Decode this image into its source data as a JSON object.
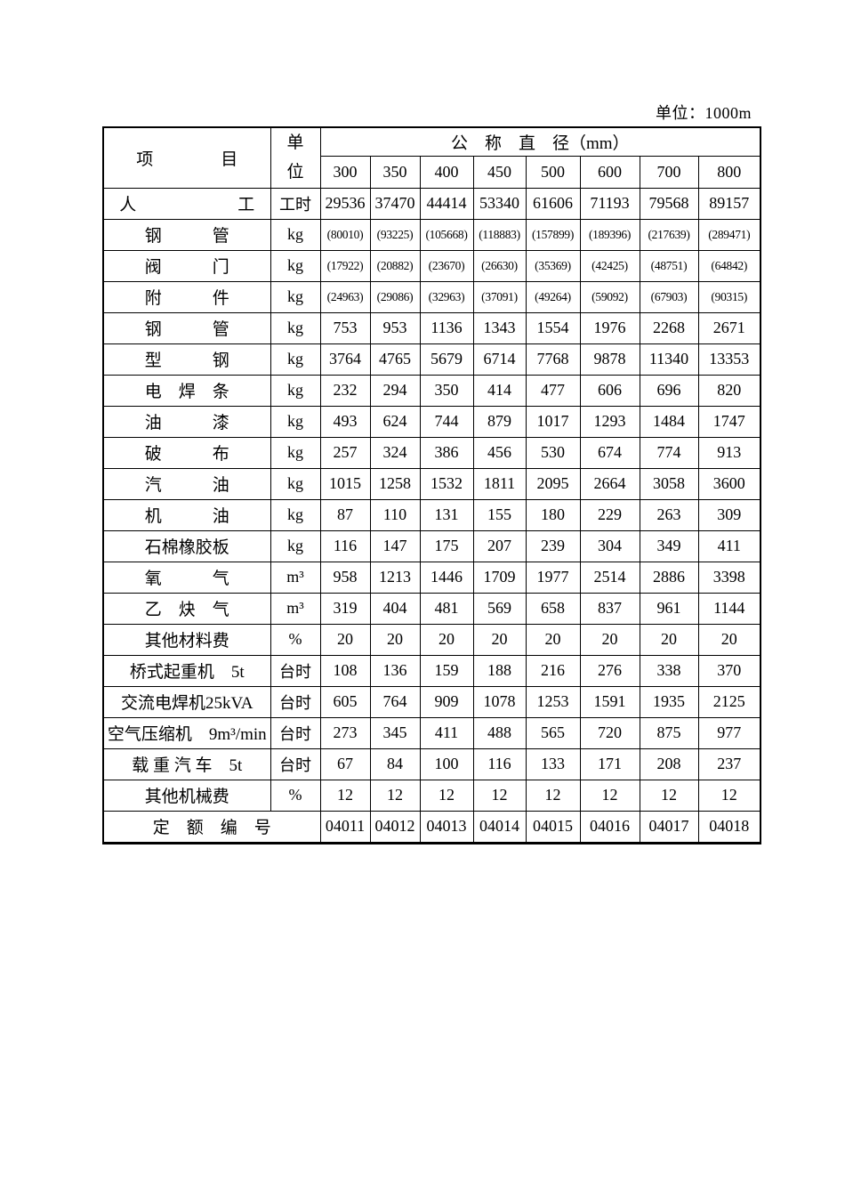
{
  "page": {
    "unit_note": "单位：1000m"
  },
  "table": {
    "header": {
      "item": "项　　　　目",
      "unit_top": "单",
      "unit_bottom": "位",
      "diameter_title": "公　称　直　径（mm）",
      "diameters": [
        "300",
        "350",
        "400",
        "450",
        "500",
        "600",
        "700",
        "800"
      ]
    },
    "rows": [
      {
        "label": "人　　　　　　工",
        "unit": "工时",
        "small": false,
        "values": [
          "29536",
          "37470",
          "44414",
          "53340",
          "61606",
          "71193",
          "79568",
          "89157"
        ]
      },
      {
        "label": "钢　　　管",
        "unit": "kg",
        "small": true,
        "values": [
          "(80010)",
          "(93225)",
          "(105668)",
          "(118883)",
          "(157899)",
          "(189396)",
          "(217639)",
          "(289471)"
        ]
      },
      {
        "label": "阀　　　门",
        "unit": "kg",
        "small": true,
        "values": [
          "(17922)",
          "(20882)",
          "(23670)",
          "(26630)",
          "(35369)",
          "(42425)",
          "(48751)",
          "(64842)"
        ]
      },
      {
        "label": "附　　　件",
        "unit": "kg",
        "small": true,
        "values": [
          "(24963)",
          "(29086)",
          "(32963)",
          "(37091)",
          "(49264)",
          "(59092)",
          "(67903)",
          "(90315)"
        ]
      },
      {
        "label": "钢　　　管",
        "unit": "kg",
        "small": false,
        "values": [
          "753",
          "953",
          "1136",
          "1343",
          "1554",
          "1976",
          "2268",
          "2671"
        ]
      },
      {
        "label": "型　　　钢",
        "unit": "kg",
        "small": false,
        "values": [
          "3764",
          "4765",
          "5679",
          "6714",
          "7768",
          "9878",
          "11340",
          "13353"
        ]
      },
      {
        "label": "电　焊　条",
        "unit": "kg",
        "small": false,
        "values": [
          "232",
          "294",
          "350",
          "414",
          "477",
          "606",
          "696",
          "820"
        ]
      },
      {
        "label": "油　　　漆",
        "unit": "kg",
        "small": false,
        "values": [
          "493",
          "624",
          "744",
          "879",
          "1017",
          "1293",
          "1484",
          "1747"
        ]
      },
      {
        "label": "破　　　布",
        "unit": "kg",
        "small": false,
        "values": [
          "257",
          "324",
          "386",
          "456",
          "530",
          "674",
          "774",
          "913"
        ]
      },
      {
        "label": "汽　　　油",
        "unit": "kg",
        "small": false,
        "values": [
          "1015",
          "1258",
          "1532",
          "1811",
          "2095",
          "2664",
          "3058",
          "3600"
        ]
      },
      {
        "label": "机　　　油",
        "unit": "kg",
        "small": false,
        "values": [
          "87",
          "110",
          "131",
          "155",
          "180",
          "229",
          "263",
          "309"
        ]
      },
      {
        "label": "石棉橡胶板",
        "unit": "kg",
        "small": false,
        "values": [
          "116",
          "147",
          "175",
          "207",
          "239",
          "304",
          "349",
          "411"
        ]
      },
      {
        "label": "氧　　　气",
        "unit": "m³",
        "small": false,
        "values": [
          "958",
          "1213",
          "1446",
          "1709",
          "1977",
          "2514",
          "2886",
          "3398"
        ]
      },
      {
        "label": "乙　炔　气",
        "unit": "m³",
        "small": false,
        "values": [
          "319",
          "404",
          "481",
          "569",
          "658",
          "837",
          "961",
          "1144"
        ]
      },
      {
        "label": "其他材料费",
        "unit": "%",
        "small": false,
        "values": [
          "20",
          "20",
          "20",
          "20",
          "20",
          "20",
          "20",
          "20"
        ]
      },
      {
        "label": "桥式起重机　5t",
        "unit": "台时",
        "small": false,
        "values": [
          "108",
          "136",
          "159",
          "188",
          "216",
          "276",
          "338",
          "370"
        ]
      },
      {
        "label": "交流电焊机25kVA",
        "unit": "台时",
        "small": false,
        "values": [
          "605",
          "764",
          "909",
          "1078",
          "1253",
          "1591",
          "1935",
          "2125"
        ]
      },
      {
        "label": "空气压缩机　9m³/min",
        "unit": "台时",
        "small": false,
        "values": [
          "273",
          "345",
          "411",
          "488",
          "565",
          "720",
          "875",
          "977"
        ]
      },
      {
        "label": "载 重 汽 车　5t",
        "unit": "台时",
        "small": false,
        "values": [
          "67",
          "84",
          "100",
          "116",
          "133",
          "171",
          "208",
          "237"
        ]
      },
      {
        "label": "其他机械费",
        "unit": "%",
        "small": false,
        "values": [
          "12",
          "12",
          "12",
          "12",
          "12",
          "12",
          "12",
          "12"
        ]
      }
    ],
    "footer": {
      "label": "定　额　编　号",
      "codes": [
        "04011",
        "04012",
        "04013",
        "04014",
        "04015",
        "04016",
        "04017",
        "04018"
      ]
    }
  }
}
